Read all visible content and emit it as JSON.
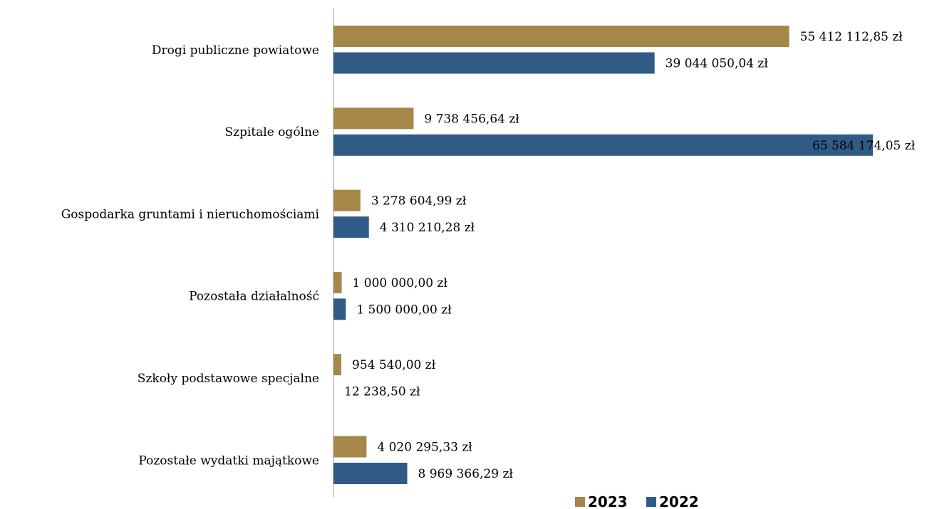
{
  "chart_data": {
    "type": "bar",
    "orientation": "horizontal",
    "categories": [
      "Drogi publiczne powiatowe",
      "Szpitale ogólne",
      "Gospodarka gruntami i nieruchomościami",
      "Pozostała działalność",
      "Szkoły podstawowe specjalne",
      "Pozostałe wydatki majątkowe"
    ],
    "series": [
      {
        "name": "2023",
        "color": "#A58749",
        "values": [
          55412112.85,
          9738456.64,
          3278604.99,
          1000000.0,
          954540.0,
          4020295.33
        ],
        "labels": [
          "55 412 112,85 zł",
          "9 738 456,64 zł",
          "3 278 604,99 zł",
          "1 000 000,00 zł",
          "954 540,00 zł",
          "4 020 295,33 zł"
        ]
      },
      {
        "name": "2022",
        "color": "#2F5B86",
        "values": [
          39044050.04,
          65584174.05,
          4310210.28,
          1500000.0,
          12238.5,
          8969366.29
        ],
        "labels": [
          "39 044 050,04 zł",
          "65 584 174,05 zł",
          "4 310 210,28 zł",
          "1 500 000,00 zł",
          "12 238,50 zł",
          "8 969 366,29 zł"
        ]
      }
    ],
    "xlim": [
      0,
      65584174.05
    ],
    "grid": false,
    "legend": "bottom-right"
  }
}
